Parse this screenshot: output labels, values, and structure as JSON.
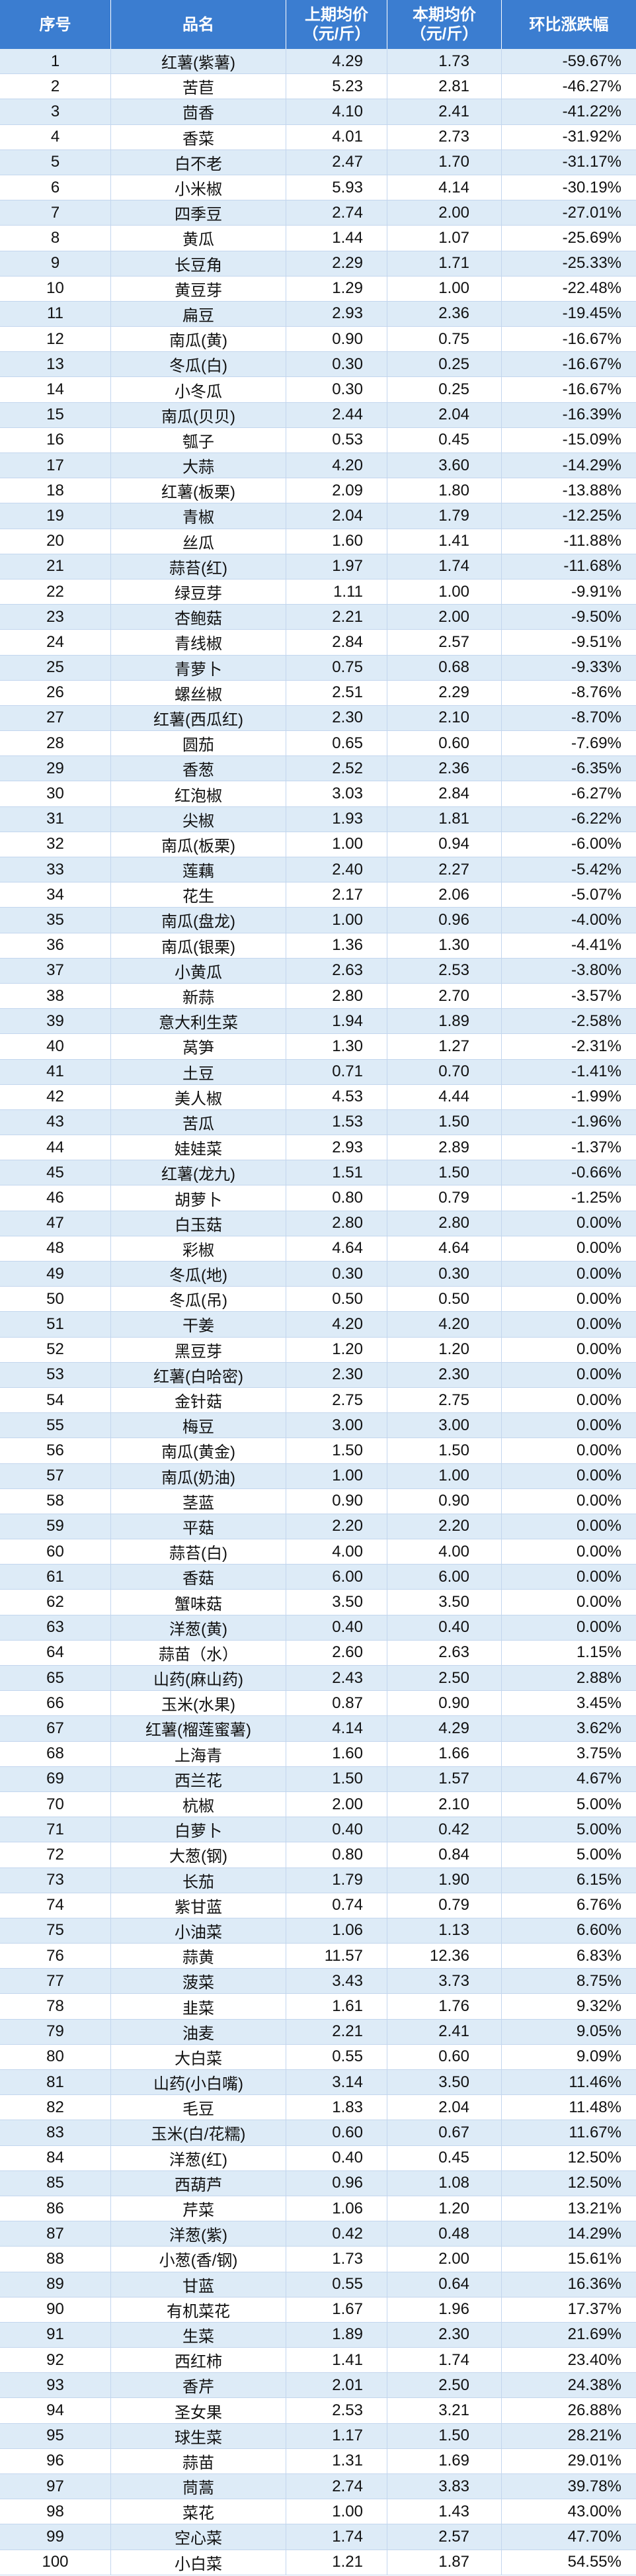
{
  "colors": {
    "header_bg": "#3B7DD0",
    "header_text": "#FFFFFF",
    "band_bg": "#DDEBF7"
  },
  "chart_data": {
    "type": "table",
    "columns": [
      {
        "label": "序号"
      },
      {
        "label": "品名"
      },
      {
        "label": "上期均价",
        "unit": "（元/斤）"
      },
      {
        "label": "本期均价",
        "unit": "（元/斤）"
      },
      {
        "label": "环比涨跌幅"
      }
    ],
    "rows": [
      {
        "no": "1",
        "name": "红薯(紫薯)",
        "last": "4.29",
        "curr": "1.73",
        "chg": "-59.67%"
      },
      {
        "no": "2",
        "name": "苦苣",
        "last": "5.23",
        "curr": "2.81",
        "chg": "-46.27%"
      },
      {
        "no": "3",
        "name": "茴香",
        "last": "4.10",
        "curr": "2.41",
        "chg": "-41.22%"
      },
      {
        "no": "4",
        "name": "香菜",
        "last": "4.01",
        "curr": "2.73",
        "chg": "-31.92%"
      },
      {
        "no": "5",
        "name": "白不老",
        "last": "2.47",
        "curr": "1.70",
        "chg": "-31.17%"
      },
      {
        "no": "6",
        "name": "小米椒",
        "last": "5.93",
        "curr": "4.14",
        "chg": "-30.19%"
      },
      {
        "no": "7",
        "name": "四季豆",
        "last": "2.74",
        "curr": "2.00",
        "chg": "-27.01%"
      },
      {
        "no": "8",
        "name": "黄瓜",
        "last": "1.44",
        "curr": "1.07",
        "chg": "-25.69%"
      },
      {
        "no": "9",
        "name": "长豆角",
        "last": "2.29",
        "curr": "1.71",
        "chg": "-25.33%"
      },
      {
        "no": "10",
        "name": "黄豆芽",
        "last": "1.29",
        "curr": "1.00",
        "chg": "-22.48%"
      },
      {
        "no": "11",
        "name": "扁豆",
        "last": "2.93",
        "curr": "2.36",
        "chg": "-19.45%"
      },
      {
        "no": "12",
        "name": "南瓜(黄)",
        "last": "0.90",
        "curr": "0.75",
        "chg": "-16.67%"
      },
      {
        "no": "13",
        "name": "冬瓜(白)",
        "last": "0.30",
        "curr": "0.25",
        "chg": "-16.67%"
      },
      {
        "no": "14",
        "name": "小冬瓜",
        "last": "0.30",
        "curr": "0.25",
        "chg": "-16.67%"
      },
      {
        "no": "15",
        "name": "南瓜(贝贝)",
        "last": "2.44",
        "curr": "2.04",
        "chg": "-16.39%"
      },
      {
        "no": "16",
        "name": "瓠子",
        "last": "0.53",
        "curr": "0.45",
        "chg": "-15.09%"
      },
      {
        "no": "17",
        "name": "大蒜",
        "last": "4.20",
        "curr": "3.60",
        "chg": "-14.29%"
      },
      {
        "no": "18",
        "name": "红薯(板栗)",
        "last": "2.09",
        "curr": "1.80",
        "chg": "-13.88%"
      },
      {
        "no": "19",
        "name": "青椒",
        "last": "2.04",
        "curr": "1.79",
        "chg": "-12.25%"
      },
      {
        "no": "20",
        "name": "丝瓜",
        "last": "1.60",
        "curr": "1.41",
        "chg": "-11.88%"
      },
      {
        "no": "21",
        "name": "蒜苔(红)",
        "last": "1.97",
        "curr": "1.74",
        "chg": "-11.68%"
      },
      {
        "no": "22",
        "name": "绿豆芽",
        "last": "1.11",
        "curr": "1.00",
        "chg": "-9.91%"
      },
      {
        "no": "23",
        "name": "杏鲍菇",
        "last": "2.21",
        "curr": "2.00",
        "chg": "-9.50%"
      },
      {
        "no": "24",
        "name": "青线椒",
        "last": "2.84",
        "curr": "2.57",
        "chg": "-9.51%"
      },
      {
        "no": "25",
        "name": "青萝卜",
        "last": "0.75",
        "curr": "0.68",
        "chg": "-9.33%"
      },
      {
        "no": "26",
        "name": "螺丝椒",
        "last": "2.51",
        "curr": "2.29",
        "chg": "-8.76%"
      },
      {
        "no": "27",
        "name": "红薯(西瓜红)",
        "last": "2.30",
        "curr": "2.10",
        "chg": "-8.70%"
      },
      {
        "no": "28",
        "name": "圆茄",
        "last": "0.65",
        "curr": "0.60",
        "chg": "-7.69%"
      },
      {
        "no": "29",
        "name": "香葱",
        "last": "2.52",
        "curr": "2.36",
        "chg": "-6.35%"
      },
      {
        "no": "30",
        "name": "红泡椒",
        "last": "3.03",
        "curr": "2.84",
        "chg": "-6.27%"
      },
      {
        "no": "31",
        "name": "尖椒",
        "last": "1.93",
        "curr": "1.81",
        "chg": "-6.22%"
      },
      {
        "no": "32",
        "name": "南瓜(板栗)",
        "last": "1.00",
        "curr": "0.94",
        "chg": "-6.00%"
      },
      {
        "no": "33",
        "name": "莲藕",
        "last": "2.40",
        "curr": "2.27",
        "chg": "-5.42%"
      },
      {
        "no": "34",
        "name": "花生",
        "last": "2.17",
        "curr": "2.06",
        "chg": "-5.07%"
      },
      {
        "no": "35",
        "name": "南瓜(盘龙)",
        "last": "1.00",
        "curr": "0.96",
        "chg": "-4.00%"
      },
      {
        "no": "36",
        "name": "南瓜(银栗)",
        "last": "1.36",
        "curr": "1.30",
        "chg": "-4.41%"
      },
      {
        "no": "37",
        "name": "小黄瓜",
        "last": "2.63",
        "curr": "2.53",
        "chg": "-3.80%"
      },
      {
        "no": "38",
        "name": "新蒜",
        "last": "2.80",
        "curr": "2.70",
        "chg": "-3.57%"
      },
      {
        "no": "39",
        "name": "意大利生菜",
        "last": "1.94",
        "curr": "1.89",
        "chg": "-2.58%"
      },
      {
        "no": "40",
        "name": "莴笋",
        "last": "1.30",
        "curr": "1.27",
        "chg": "-2.31%"
      },
      {
        "no": "41",
        "name": "土豆",
        "last": "0.71",
        "curr": "0.70",
        "chg": "-1.41%"
      },
      {
        "no": "42",
        "name": "美人椒",
        "last": "4.53",
        "curr": "4.44",
        "chg": "-1.99%"
      },
      {
        "no": "43",
        "name": "苦瓜",
        "last": "1.53",
        "curr": "1.50",
        "chg": "-1.96%"
      },
      {
        "no": "44",
        "name": "娃娃菜",
        "last": "2.93",
        "curr": "2.89",
        "chg": "-1.37%"
      },
      {
        "no": "45",
        "name": "红薯(龙九)",
        "last": "1.51",
        "curr": "1.50",
        "chg": "-0.66%"
      },
      {
        "no": "46",
        "name": "胡萝卜",
        "last": "0.80",
        "curr": "0.79",
        "chg": "-1.25%"
      },
      {
        "no": "47",
        "name": "白玉菇",
        "last": "2.80",
        "curr": "2.80",
        "chg": "0.00%"
      },
      {
        "no": "48",
        "name": "彩椒",
        "last": "4.64",
        "curr": "4.64",
        "chg": "0.00%"
      },
      {
        "no": "49",
        "name": "冬瓜(地)",
        "last": "0.30",
        "curr": "0.30",
        "chg": "0.00%"
      },
      {
        "no": "50",
        "name": "冬瓜(吊)",
        "last": "0.50",
        "curr": "0.50",
        "chg": "0.00%"
      },
      {
        "no": "51",
        "name": "干姜",
        "last": "4.20",
        "curr": "4.20",
        "chg": "0.00%"
      },
      {
        "no": "52",
        "name": "黑豆芽",
        "last": "1.20",
        "curr": "1.20",
        "chg": "0.00%"
      },
      {
        "no": "53",
        "name": "红薯(白哈密)",
        "last": "2.30",
        "curr": "2.30",
        "chg": "0.00%"
      },
      {
        "no": "54",
        "name": "金针菇",
        "last": "2.75",
        "curr": "2.75",
        "chg": "0.00%"
      },
      {
        "no": "55",
        "name": "梅豆",
        "last": "3.00",
        "curr": "3.00",
        "chg": "0.00%"
      },
      {
        "no": "56",
        "name": "南瓜(黄金)",
        "last": "1.50",
        "curr": "1.50",
        "chg": "0.00%"
      },
      {
        "no": "57",
        "name": "南瓜(奶油)",
        "last": "1.00",
        "curr": "1.00",
        "chg": "0.00%"
      },
      {
        "no": "58",
        "name": "茎蓝",
        "last": "0.90",
        "curr": "0.90",
        "chg": "0.00%"
      },
      {
        "no": "59",
        "name": "平菇",
        "last": "2.20",
        "curr": "2.20",
        "chg": "0.00%"
      },
      {
        "no": "60",
        "name": "蒜苔(白)",
        "last": "4.00",
        "curr": "4.00",
        "chg": "0.00%"
      },
      {
        "no": "61",
        "name": "香菇",
        "last": "6.00",
        "curr": "6.00",
        "chg": "0.00%"
      },
      {
        "no": "62",
        "name": "蟹味菇",
        "last": "3.50",
        "curr": "3.50",
        "chg": "0.00%"
      },
      {
        "no": "63",
        "name": "洋葱(黄)",
        "last": "0.40",
        "curr": "0.40",
        "chg": "0.00%"
      },
      {
        "no": "64",
        "name": "蒜苗（水）",
        "last": "2.60",
        "curr": "2.63",
        "chg": "1.15%"
      },
      {
        "no": "65",
        "name": "山药(麻山药)",
        "last": "2.43",
        "curr": "2.50",
        "chg": "2.88%"
      },
      {
        "no": "66",
        "name": "玉米(水果)",
        "last": "0.87",
        "curr": "0.90",
        "chg": "3.45%"
      },
      {
        "no": "67",
        "name": "红薯(榴莲蜜薯)",
        "last": "4.14",
        "curr": "4.29",
        "chg": "3.62%"
      },
      {
        "no": "68",
        "name": "上海青",
        "last": "1.60",
        "curr": "1.66",
        "chg": "3.75%"
      },
      {
        "no": "69",
        "name": "西兰花",
        "last": "1.50",
        "curr": "1.57",
        "chg": "4.67%"
      },
      {
        "no": "70",
        "name": "杭椒",
        "last": "2.00",
        "curr": "2.10",
        "chg": "5.00%"
      },
      {
        "no": "71",
        "name": "白萝卜",
        "last": "0.40",
        "curr": "0.42",
        "chg": "5.00%"
      },
      {
        "no": "72",
        "name": "大葱(钢)",
        "last": "0.80",
        "curr": "0.84",
        "chg": "5.00%"
      },
      {
        "no": "73",
        "name": "长茄",
        "last": "1.79",
        "curr": "1.90",
        "chg": "6.15%"
      },
      {
        "no": "74",
        "name": "紫甘蓝",
        "last": "0.74",
        "curr": "0.79",
        "chg": "6.76%"
      },
      {
        "no": "75",
        "name": "小油菜",
        "last": "1.06",
        "curr": "1.13",
        "chg": "6.60%"
      },
      {
        "no": "76",
        "name": "蒜黄",
        "last": "11.57",
        "curr": "12.36",
        "chg": "6.83%"
      },
      {
        "no": "77",
        "name": "菠菜",
        "last": "3.43",
        "curr": "3.73",
        "chg": "8.75%"
      },
      {
        "no": "78",
        "name": "韭菜",
        "last": "1.61",
        "curr": "1.76",
        "chg": "9.32%"
      },
      {
        "no": "79",
        "name": "油麦",
        "last": "2.21",
        "curr": "2.41",
        "chg": "9.05%"
      },
      {
        "no": "80",
        "name": "大白菜",
        "last": "0.55",
        "curr": "0.60",
        "chg": "9.09%"
      },
      {
        "no": "81",
        "name": "山药(小白嘴)",
        "last": "3.14",
        "curr": "3.50",
        "chg": "11.46%"
      },
      {
        "no": "82",
        "name": "毛豆",
        "last": "1.83",
        "curr": "2.04",
        "chg": "11.48%"
      },
      {
        "no": "83",
        "name": "玉米(白/花糯)",
        "last": "0.60",
        "curr": "0.67",
        "chg": "11.67%"
      },
      {
        "no": "84",
        "name": "洋葱(红)",
        "last": "0.40",
        "curr": "0.45",
        "chg": "12.50%"
      },
      {
        "no": "85",
        "name": "西葫芦",
        "last": "0.96",
        "curr": "1.08",
        "chg": "12.50%"
      },
      {
        "no": "86",
        "name": "芹菜",
        "last": "1.06",
        "curr": "1.20",
        "chg": "13.21%"
      },
      {
        "no": "87",
        "name": "洋葱(紫)",
        "last": "0.42",
        "curr": "0.48",
        "chg": "14.29%"
      },
      {
        "no": "88",
        "name": "小葱(香/钢)",
        "last": "1.73",
        "curr": "2.00",
        "chg": "15.61%"
      },
      {
        "no": "89",
        "name": "甘蓝",
        "last": "0.55",
        "curr": "0.64",
        "chg": "16.36%"
      },
      {
        "no": "90",
        "name": "有机菜花",
        "last": "1.67",
        "curr": "1.96",
        "chg": "17.37%"
      },
      {
        "no": "91",
        "name": "生菜",
        "last": "1.89",
        "curr": "2.30",
        "chg": "21.69%"
      },
      {
        "no": "92",
        "name": "西红柿",
        "last": "1.41",
        "curr": "1.74",
        "chg": "23.40%"
      },
      {
        "no": "93",
        "name": "香芹",
        "last": "2.01",
        "curr": "2.50",
        "chg": "24.38%"
      },
      {
        "no": "94",
        "name": "圣女果",
        "last": "2.53",
        "curr": "3.21",
        "chg": "26.88%"
      },
      {
        "no": "95",
        "name": "球生菜",
        "last": "1.17",
        "curr": "1.50",
        "chg": "28.21%"
      },
      {
        "no": "96",
        "name": "蒜苗",
        "last": "1.31",
        "curr": "1.69",
        "chg": "29.01%"
      },
      {
        "no": "97",
        "name": "茼蒿",
        "last": "2.74",
        "curr": "3.83",
        "chg": "39.78%"
      },
      {
        "no": "98",
        "name": "菜花",
        "last": "1.00",
        "curr": "1.43",
        "chg": "43.00%"
      },
      {
        "no": "99",
        "name": "空心菜",
        "last": "1.74",
        "curr": "2.57",
        "chg": "47.70%"
      },
      {
        "no": "100",
        "name": "小白菜",
        "last": "1.21",
        "curr": "1.87",
        "chg": "54.55%"
      }
    ]
  }
}
